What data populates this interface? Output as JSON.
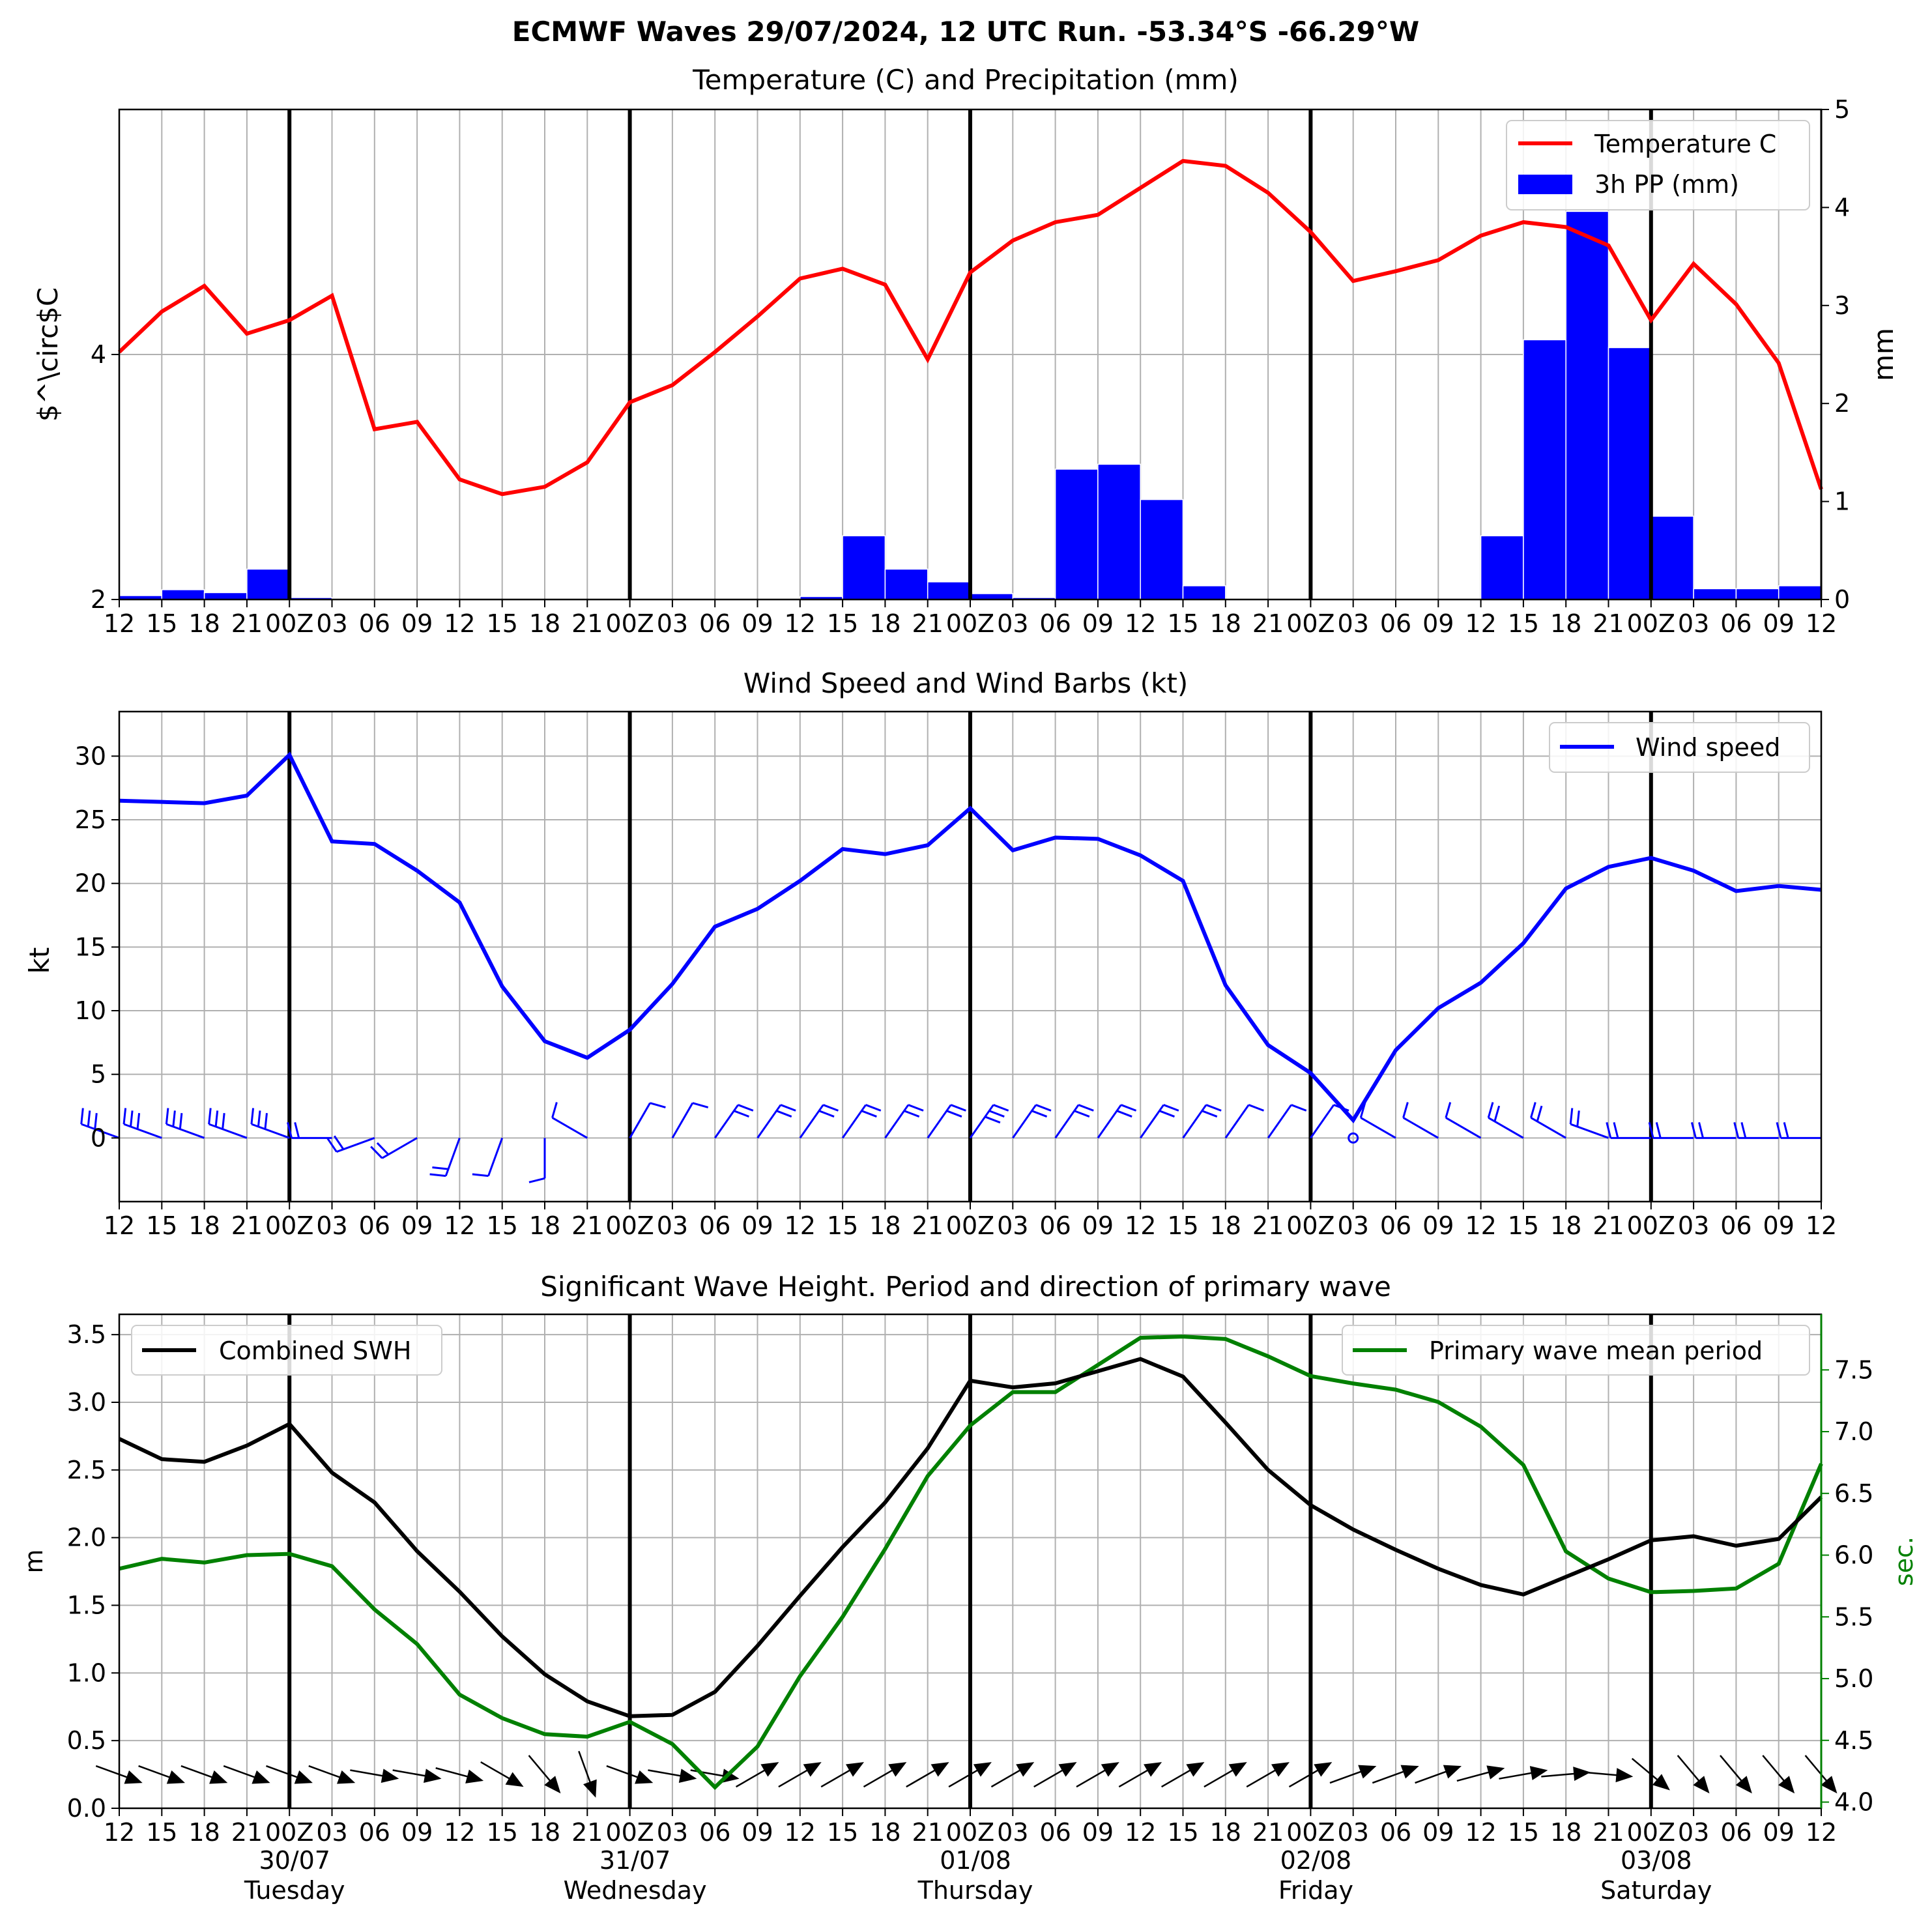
{
  "title": "ECMWF Waves 29/07/2024, 12 UTC Run. -53.34°S -66.29°W",
  "x_tick_labels": [
    "12",
    "15",
    "18",
    "21",
    "00Z",
    "03",
    "06",
    "09",
    "12",
    "15",
    "18",
    "21",
    "00Z",
    "03",
    "06",
    "09",
    "12",
    "15",
    "18",
    "21",
    "00Z",
    "03",
    "06",
    "09",
    "12",
    "15",
    "18",
    "21",
    "00Z",
    "03",
    "06",
    "09",
    "12",
    "15",
    "18",
    "21",
    "00Z",
    "03",
    "06",
    "09",
    "12"
  ],
  "date_labels": [
    {
      "date": "30/07",
      "day": "Tuesday"
    },
    {
      "date": "31/07",
      "day": "Wednesday"
    },
    {
      "date": "01/08",
      "day": "Thursday"
    },
    {
      "date": "02/08",
      "day": "Friday"
    },
    {
      "date": "03/08",
      "day": "Saturday"
    }
  ],
  "chart_data": [
    {
      "type": "line",
      "title": "Temperature (C) and Precipitation (mm)",
      "ylabel": "$^\\circ$C",
      "y2label": "mm",
      "ylim": [
        2,
        6
      ],
      "y_ticks": [
        2,
        4
      ],
      "y2lim": [
        0,
        5
      ],
      "y2_ticks": [
        0,
        1,
        2,
        3,
        4,
        5
      ],
      "grid": true,
      "legend": "top-right",
      "colors": {
        "temperature": "#ff0000",
        "precip": "#0000ff"
      },
      "series": [
        {
          "name": "Temperature C",
          "type": "line",
          "axis": "left",
          "values": [
            4.02,
            4.35,
            4.56,
            4.17,
            4.28,
            4.48,
            3.39,
            3.45,
            2.98,
            2.86,
            2.92,
            3.12,
            3.61,
            3.75,
            4.02,
            4.31,
            4.62,
            4.7,
            4.57,
            3.96,
            4.67,
            4.93,
            5.08,
            5.14,
            5.36,
            5.58,
            5.54,
            5.32,
            5.0,
            4.6,
            4.68,
            4.77,
            4.97,
            5.08,
            5.04,
            4.89,
            4.28,
            4.74,
            4.41,
            3.93,
            2.9
          ]
        },
        {
          "name": "3h PP (mm)",
          "type": "bar",
          "axis": "right",
          "values": [
            0.04,
            0.1,
            0.07,
            0.31,
            0.02,
            0,
            0,
            0,
            0,
            0,
            0,
            0,
            0,
            0,
            0,
            0,
            0.03,
            0.65,
            0.31,
            0.18,
            0.06,
            0.02,
            1.33,
            1.38,
            1.02,
            0.14,
            0,
            0,
            0,
            0,
            0,
            0,
            0.65,
            2.65,
            3.96,
            2.57,
            0.85,
            0.11,
            0.11,
            0.14
          ]
        }
      ]
    },
    {
      "type": "line",
      "title": "Wind Speed and Wind Barbs (kt)",
      "ylabel": "kt",
      "ylim": [
        -5,
        33.5
      ],
      "y_ticks": [
        0,
        5,
        10,
        15,
        20,
        25,
        30
      ],
      "grid": true,
      "legend": "top-right",
      "colors": {
        "wind": "#0000ff"
      },
      "series": [
        {
          "name": "Wind speed",
          "values": [
            26.5,
            26.4,
            26.3,
            26.9,
            30.1,
            23.3,
            23.1,
            21.0,
            18.5,
            11.9,
            7.6,
            6.3,
            8.5,
            12.1,
            16.6,
            18.0,
            20.2,
            22.7,
            22.3,
            23.0,
            25.9,
            22.6,
            23.6,
            23.5,
            22.2,
            20.2,
            12.0,
            7.3,
            5.1,
            1.4,
            6.9,
            10.2,
            12.2,
            15.3,
            19.6,
            21.3,
            22.0,
            21.0,
            19.4,
            19.8,
            19.5
          ]
        }
      ],
      "barb_directions_deg": [
        290,
        290,
        290,
        290,
        290,
        270,
        250,
        240,
        200,
        200,
        180,
        300,
        30,
        30,
        35,
        35,
        35,
        35,
        35,
        35,
        35,
        35,
        35,
        35,
        35,
        35,
        35,
        35,
        35,
        null,
        300,
        300,
        300,
        300,
        300,
        290,
        270,
        270,
        270,
        270,
        270
      ]
    },
    {
      "type": "line",
      "title": "Significant Wave Height. Period and direction of primary wave",
      "ylabel": "m",
      "y2label": "sec.",
      "ylim": [
        0,
        3.65
      ],
      "y_ticks": [
        0.0,
        0.5,
        1.0,
        1.5,
        2.0,
        2.5,
        3.0,
        3.5
      ],
      "y2lim": [
        3.95,
        7.95
      ],
      "y2_ticks": [
        4.0,
        4.5,
        5.0,
        5.5,
        6.0,
        6.5,
        7.0,
        7.5
      ],
      "grid": true,
      "legend_left": "top-left",
      "legend_right": "top-right",
      "colors": {
        "swh": "#000000",
        "period": "#008000"
      },
      "series": [
        {
          "name": "Combined SWH",
          "axis": "left",
          "values": [
            2.73,
            2.58,
            2.56,
            2.68,
            2.84,
            2.48,
            2.26,
            1.9,
            1.6,
            1.27,
            0.99,
            0.79,
            0.68,
            0.69,
            0.86,
            1.2,
            1.57,
            1.93,
            2.26,
            2.66,
            3.16,
            3.11,
            3.14,
            3.23,
            3.32,
            3.19,
            2.85,
            2.5,
            2.24,
            2.06,
            1.91,
            1.77,
            1.65,
            1.58,
            1.71,
            1.84,
            1.98,
            2.01,
            1.94,
            1.99,
            2.3
          ]
        },
        {
          "name": "Primary wave mean period",
          "axis": "right",
          "values": [
            5.89,
            5.97,
            5.94,
            6.0,
            6.01,
            5.91,
            5.56,
            5.28,
            4.87,
            4.68,
            4.55,
            4.53,
            4.65,
            4.47,
            4.12,
            4.45,
            5.02,
            5.5,
            6.05,
            6.64,
            7.05,
            7.32,
            7.32,
            7.54,
            7.76,
            7.77,
            7.75,
            7.61,
            7.45,
            7.39,
            7.34,
            7.24,
            7.04,
            6.73,
            6.03,
            5.81,
            5.7,
            5.71,
            5.73,
            5.93,
            6.74
          ]
        }
      ],
      "arrow_directions_deg": [
        110,
        110,
        110,
        110,
        110,
        110,
        100,
        100,
        105,
        120,
        140,
        160,
        110,
        100,
        100,
        60,
        60,
        60,
        60,
        60,
        60,
        60,
        60,
        60,
        60,
        60,
        60,
        60,
        60,
        70,
        70,
        70,
        75,
        80,
        85,
        95,
        130,
        140,
        140,
        140,
        140
      ]
    }
  ]
}
